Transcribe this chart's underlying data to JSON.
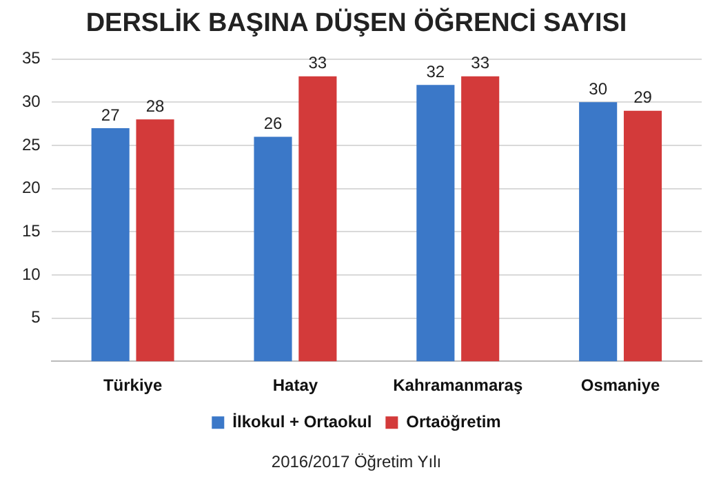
{
  "chart_data": {
    "type": "bar",
    "title": "DERSLİK BAŞINA DÜŞEN ÖĞRENCİ SAYISI",
    "categories": [
      "Türkiye",
      "Hatay",
      "Kahramanmaraş",
      "Osmaniye"
    ],
    "series": [
      {
        "name": "İlkokul + Ortaokul",
        "color": "#3b78c8",
        "values": [
          27,
          26,
          32,
          30
        ]
      },
      {
        "name": "Ortaöğretim",
        "color": "#d33a3a",
        "values": [
          28,
          33,
          33,
          29
        ]
      }
    ],
    "ylim": [
      0,
      35
    ],
    "yticks": [
      5,
      10,
      15,
      20,
      25,
      30,
      35
    ],
    "grid": "y",
    "legend": "bottom",
    "data_labels": true,
    "annotations": [
      "2016/2017 Öğretim Yılı"
    ]
  }
}
